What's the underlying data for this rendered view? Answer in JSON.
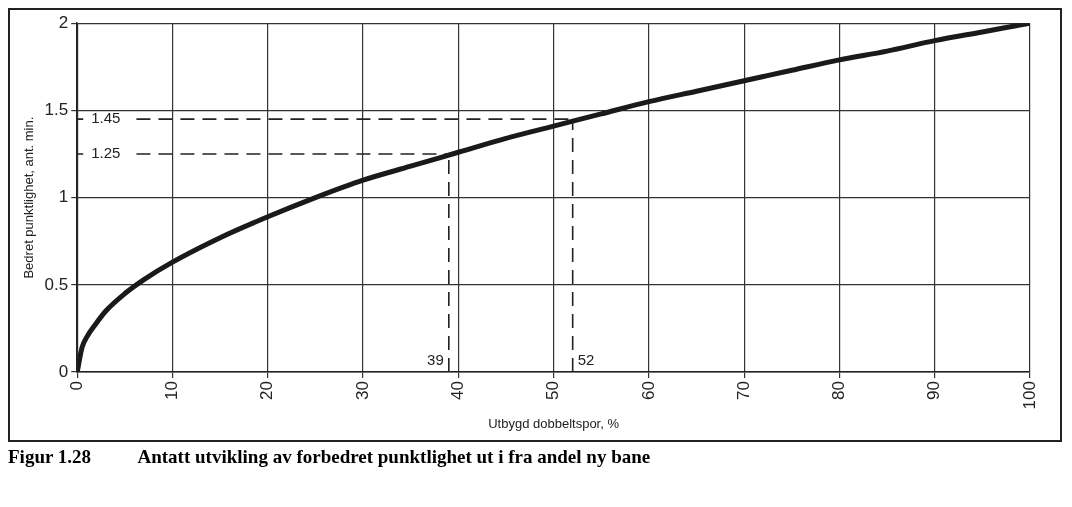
{
  "chart_data": {
    "type": "line",
    "title": "Figur 1.28          Antatt utvikling av forbedret punktlighet ut i fra andel ny bane",
    "xlabel": "Utbygd dobbeltspor, %",
    "ylabel": "Bedret punktlighet, ant. min.",
    "x": [
      0,
      0.5,
      1,
      2,
      3,
      5,
      7,
      10,
      15,
      20,
      25,
      30,
      35,
      40,
      45,
      50,
      55,
      60,
      65,
      70,
      75,
      80,
      85,
      90,
      95,
      100
    ],
    "series": [
      {
        "color": "#1a1a1a",
        "values": [
          0,
          0.14,
          0.2,
          0.28,
          0.35,
          0.45,
          0.53,
          0.63,
          0.77,
          0.89,
          1.0,
          1.1,
          1.18,
          1.26,
          1.34,
          1.41,
          1.48,
          1.55,
          1.61,
          1.67,
          1.73,
          1.79,
          1.84,
          1.9,
          1.95,
          2.0
        ]
      }
    ],
    "xlim": [
      0,
      100
    ],
    "xticks": [
      0,
      10,
      20,
      30,
      40,
      50,
      60,
      70,
      80,
      90,
      100
    ],
    "ylim": [
      0,
      2
    ],
    "yticks": [
      0,
      0.5,
      1,
      1.5,
      2
    ],
    "ref_lines": [
      {
        "axis": "y",
        "value": 1.45,
        "label": "1.45",
        "line_style": "dashed"
      },
      {
        "axis": "y",
        "value": 1.25,
        "label": "1.25",
        "line_style": "dashed"
      },
      {
        "axis": "x",
        "value": 39,
        "label": "39",
        "line_style": "dashed"
      },
      {
        "axis": "x",
        "value": 52,
        "label": "52",
        "line_style": "dashed"
      }
    ],
    "grid": true,
    "legend": false,
    "marker": "none",
    "line_style": "solid"
  }
}
